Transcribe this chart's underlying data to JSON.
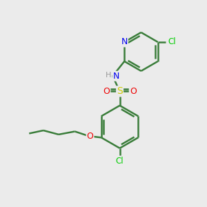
{
  "bg_color": "#ebebeb",
  "bond_color": "#3a7d3a",
  "bond_width": 1.8,
  "atom_colors": {
    "N": "#0000ee",
    "O": "#ee0000",
    "S": "#cccc00",
    "Cl": "#00cc00",
    "H": "#999999",
    "C": "#3a7d3a"
  },
  "figsize": [
    3.0,
    3.0
  ],
  "dpi": 100
}
